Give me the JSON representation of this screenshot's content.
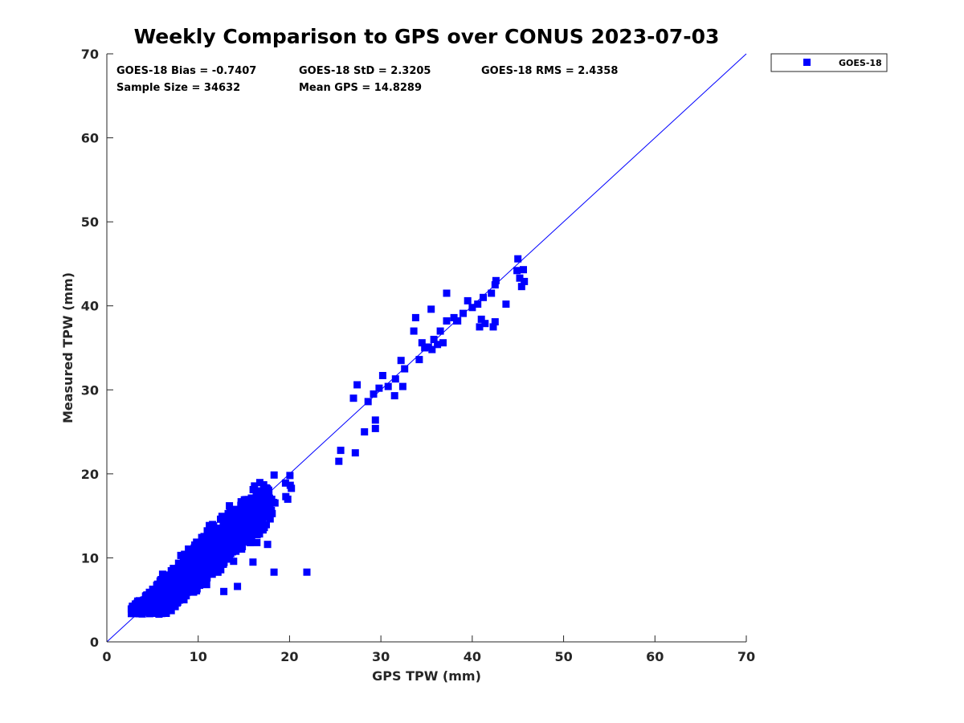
{
  "chart_data": {
    "type": "scatter",
    "title": "Weekly Comparison to GPS over CONUS 2023-07-03",
    "xlabel": "GPS TPW (mm)",
    "ylabel": "Measured TPW (mm)",
    "xlim": [
      0,
      70
    ],
    "ylim": [
      0,
      70
    ],
    "xticks": [
      "0",
      "10",
      "20",
      "30",
      "40",
      "50",
      "60",
      "70"
    ],
    "yticks": [
      "0",
      "10",
      "20",
      "30",
      "40",
      "50",
      "60",
      "70"
    ],
    "grid": false,
    "legend": {
      "position": "outside-top-right",
      "entries": [
        "GOES-18"
      ]
    },
    "reference_line": {
      "label": "1:1 line",
      "points": [
        [
          0,
          0
        ],
        [
          70,
          70
        ]
      ]
    },
    "series": [
      {
        "name": "GOES-18",
        "color": "#0000ff",
        "marker": "square",
        "cloud": {
          "x_range": [
            2.5,
            27
          ],
          "y_range": [
            3.3,
            28
          ],
          "bias": -0.74,
          "spread": 2.3,
          "count": 1400
        },
        "points": [
          [
            45.0,
            45.6
          ],
          [
            44.9,
            44.2
          ],
          [
            45.6,
            44.3
          ],
          [
            45.2,
            43.3
          ],
          [
            45.7,
            42.9
          ],
          [
            45.4,
            42.3
          ],
          [
            43.7,
            40.2
          ],
          [
            42.6,
            43.0
          ],
          [
            42.5,
            42.5
          ],
          [
            42.1,
            41.5
          ],
          [
            41.2,
            41.0
          ],
          [
            40.6,
            40.2
          ],
          [
            40.0,
            39.8
          ],
          [
            41.0,
            38.4
          ],
          [
            42.5,
            38.1
          ],
          [
            42.3,
            37.5
          ],
          [
            41.4,
            37.9
          ],
          [
            40.8,
            37.5
          ],
          [
            39.0,
            39.1
          ],
          [
            38.0,
            38.6
          ],
          [
            37.2,
            38.2
          ],
          [
            36.5,
            37.0
          ],
          [
            35.8,
            36.0
          ],
          [
            35.2,
            35.1
          ],
          [
            34.5,
            35.6
          ],
          [
            33.6,
            37.0
          ],
          [
            33.8,
            38.6
          ],
          [
            35.5,
            39.6
          ],
          [
            37.2,
            41.5
          ],
          [
            39.5,
            40.6
          ],
          [
            38.3,
            38.2
          ],
          [
            36.2,
            35.4
          ],
          [
            34.8,
            35.0
          ],
          [
            35.6,
            34.8
          ],
          [
            34.2,
            33.6
          ],
          [
            36.8,
            35.6
          ],
          [
            38.4,
            38.2
          ],
          [
            32.6,
            32.5
          ],
          [
            32.2,
            33.5
          ],
          [
            31.6,
            31.3
          ],
          [
            30.8,
            30.4
          ],
          [
            31.5,
            29.3
          ],
          [
            32.4,
            30.4
          ],
          [
            30.2,
            31.7
          ],
          [
            29.8,
            30.2
          ],
          [
            29.2,
            29.5
          ],
          [
            28.6,
            28.6
          ],
          [
            27.4,
            30.6
          ],
          [
            27.0,
            29.0
          ],
          [
            29.4,
            26.4
          ],
          [
            29.4,
            25.4
          ],
          [
            28.2,
            25.0
          ],
          [
            27.2,
            22.5
          ],
          [
            25.6,
            22.8
          ],
          [
            25.4,
            21.5
          ],
          [
            21.9,
            8.3
          ],
          [
            18.3,
            8.3
          ],
          [
            16.0,
            9.5
          ],
          [
            17.6,
            11.6
          ],
          [
            14.3,
            6.6
          ],
          [
            12.8,
            6.0
          ]
        ]
      }
    ],
    "stats": [
      {
        "label": "GOES-18 Bias = -0.7407",
        "col": 0,
        "row": 0
      },
      {
        "label": "GOES-18 StD = 2.3205",
        "col": 1,
        "row": 0
      },
      {
        "label": "GOES-18 RMS = 2.4358",
        "col": 2,
        "row": 0
      },
      {
        "label": "Sample Size = 34632",
        "col": 0,
        "row": 1
      },
      {
        "label": "Mean GPS = 14.8289",
        "col": 1,
        "row": 1
      }
    ]
  }
}
